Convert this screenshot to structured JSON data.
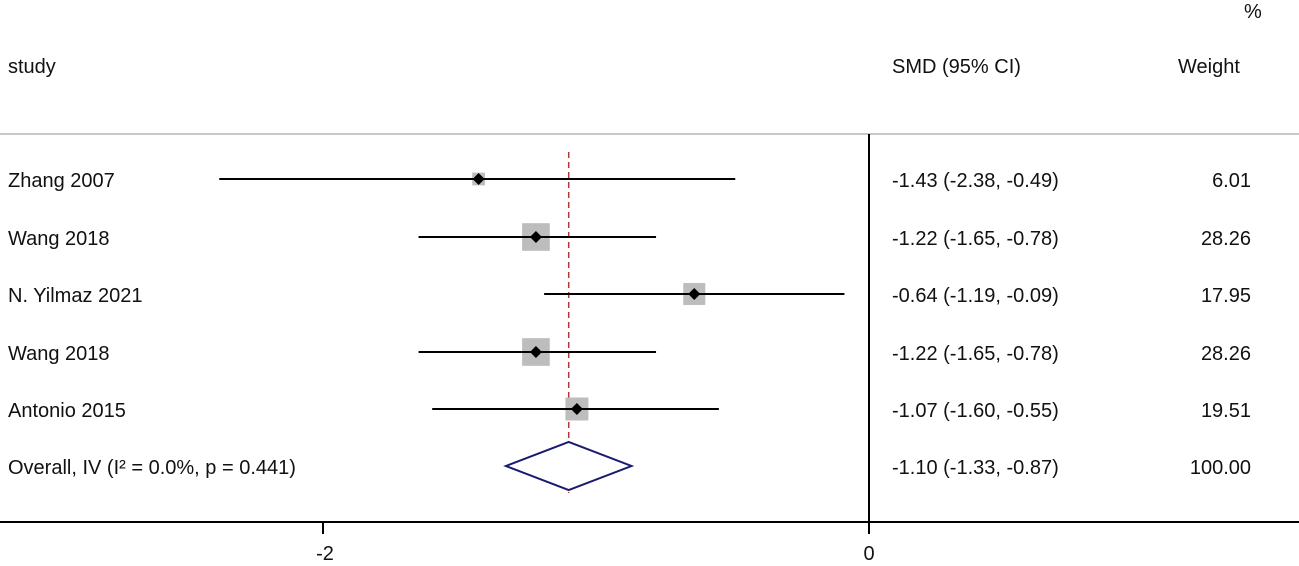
{
  "header": {
    "study_label": "study",
    "effect_label": "SMD (95% CI)",
    "weight_unit": "%",
    "weight_label": "Weight"
  },
  "chart_data": {
    "type": "forest",
    "measure": "SMD",
    "studies": [
      {
        "name": "Zhang 2007",
        "smd": -1.43,
        "ci_low": -2.38,
        "ci_high": -0.49,
        "ci_text": "-1.43 (-2.38, -0.49)",
        "weight": "6.01"
      },
      {
        "name": "Wang 2018",
        "smd": -1.22,
        "ci_low": -1.65,
        "ci_high": -0.78,
        "ci_text": "-1.22 (-1.65, -0.78)",
        "weight": "28.26"
      },
      {
        "name": "N. Yilmaz 2021",
        "smd": -0.64,
        "ci_low": -1.19,
        "ci_high": -0.09,
        "ci_text": "-0.64 (-1.19, -0.09)",
        "weight": "17.95"
      },
      {
        "name": "Wang 2018",
        "smd": -1.22,
        "ci_low": -1.65,
        "ci_high": -0.78,
        "ci_text": "-1.22 (-1.65, -0.78)",
        "weight": "28.26"
      },
      {
        "name": "Antonio 2015",
        "smd": -1.07,
        "ci_low": -1.6,
        "ci_high": -0.55,
        "ci_text": "-1.07 (-1.60, -0.55)",
        "weight": "19.51"
      }
    ],
    "overall": {
      "name": "Overall, IV (I² = 0.0%, p = 0.441)",
      "smd": -1.1,
      "ci_low": -1.33,
      "ci_high": -0.87,
      "ci_text": "-1.10 (-1.33, -0.87)",
      "weight": "100.00"
    },
    "x_ticks": [
      -2,
      0
    ],
    "x_tick_labels": [
      "-2",
      "0"
    ],
    "null_line": 0,
    "colors": {
      "ci_line": "#000000",
      "weight_box": "#bdbdbd",
      "point": "#000000",
      "overall_diamond": "#1a1a6e",
      "overall_line": "#b03a3a",
      "separator": "#c8c8c8"
    }
  }
}
